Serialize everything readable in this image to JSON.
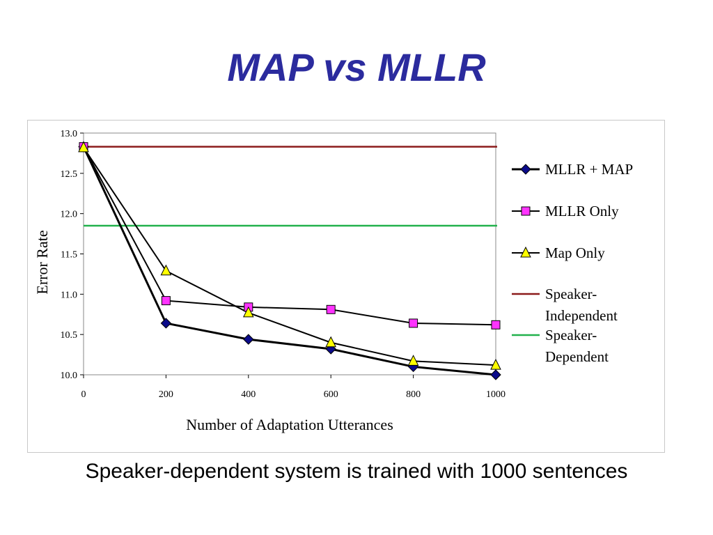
{
  "slide": {
    "title": "MAP vs MLLR",
    "caption": "Speaker-dependent system is trained with 1000 sentences"
  },
  "colors": {
    "title": "#2b2b9e",
    "mllr_map": "#0b0b8a",
    "mllr_only": "#ff33ff",
    "map_only": "#ffff00",
    "speaker_independent": "#8b1a1a",
    "speaker_dependent": "#22b14c"
  },
  "chart_data": {
    "type": "line",
    "title": "",
    "xlabel": "Number of Adaptation Utterances",
    "ylabel": "Error Rate",
    "xlim": [
      0,
      1000
    ],
    "ylim": [
      10.0,
      13.0
    ],
    "x_ticks": [
      "0",
      "200",
      "400",
      "600",
      "800",
      "1000"
    ],
    "y_ticks": [
      "10.0",
      "10.5",
      "11.0",
      "11.5",
      "12.0",
      "12.5",
      "13.0"
    ],
    "grid": false,
    "legend_position": "right",
    "x": [
      0,
      200,
      400,
      600,
      800,
      1000
    ],
    "series": [
      {
        "name": "MLLR + MAP",
        "marker": "diamond",
        "color": "#0b0b8a",
        "values": [
          12.83,
          10.64,
          10.44,
          10.32,
          10.1,
          10.0
        ]
      },
      {
        "name": "MLLR Only",
        "marker": "square",
        "color": "#ff33ff",
        "values": [
          12.83,
          10.92,
          10.84,
          10.81,
          10.64,
          10.62
        ]
      },
      {
        "name": "Map Only",
        "marker": "triangle",
        "color": "#ffff00",
        "values": [
          12.82,
          11.29,
          10.77,
          10.4,
          10.17,
          10.12
        ]
      }
    ],
    "reference_lines": [
      {
        "name": "Speaker-Independent",
        "name_lines": [
          "Speaker-",
          "Independent"
        ],
        "value": 12.83,
        "color": "#8b1a1a"
      },
      {
        "name": "Speaker-Dependent",
        "name_lines": [
          "Speaker-",
          "Dependent"
        ],
        "value": 11.85,
        "color": "#22b14c"
      }
    ]
  }
}
